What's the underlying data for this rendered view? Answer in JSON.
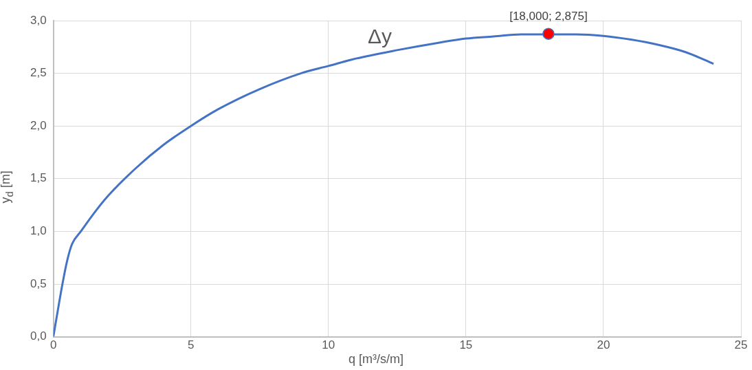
{
  "chart_data": {
    "type": "line",
    "xlabel": "q [m³/s/m]",
    "ylabel": "y$_{d}$ [m]",
    "xlim": [
      0,
      25
    ],
    "xticks": [
      0,
      5,
      10,
      15,
      20,
      25
    ],
    "ylim": [
      0,
      3
    ],
    "yticks": [
      {
        "value": 0,
        "label": "0,0"
      },
      {
        "value": 0.5,
        "label": "0,5"
      },
      {
        "value": 1,
        "label": "1,0"
      },
      {
        "value": 1.5,
        "label": "1,5"
      },
      {
        "value": 2,
        "label": "2,0"
      },
      {
        "value": 2.5,
        "label": "2,5"
      },
      {
        "value": 3,
        "label": "3,0"
      }
    ],
    "grid": true,
    "legend": false,
    "line_style": "solid",
    "series": [
      {
        "type": "line",
        "color": "#4472c4",
        "marker": "none",
        "x": [
          0,
          0.33,
          0.5,
          0.68,
          1,
          1.5,
          2,
          3,
          4,
          5,
          6,
          7.5,
          9,
          10,
          11,
          12.5,
          14,
          15,
          16,
          17,
          19,
          20,
          21,
          22,
          23,
          24
        ],
        "values": [
          0,
          0.5,
          0.72,
          0.88,
          1,
          1.18,
          1.34,
          1.6,
          1.82,
          2,
          2.16,
          2.35,
          2.5,
          2.57,
          2.64,
          2.72,
          2.79,
          2.83,
          2.85,
          2.87,
          2.87,
          2.855,
          2.82,
          2.77,
          2.7,
          2.59
        ]
      },
      {
        "type": "scatter",
        "color": "#ff0000",
        "marker": "circle",
        "x": [
          18
        ],
        "values": [
          2.875
        ]
      }
    ],
    "annotations": [
      "Δy",
      {
        "text": "[18,000; 2,875]",
        "x": 18,
        "y": 2.875
      }
    ]
  }
}
